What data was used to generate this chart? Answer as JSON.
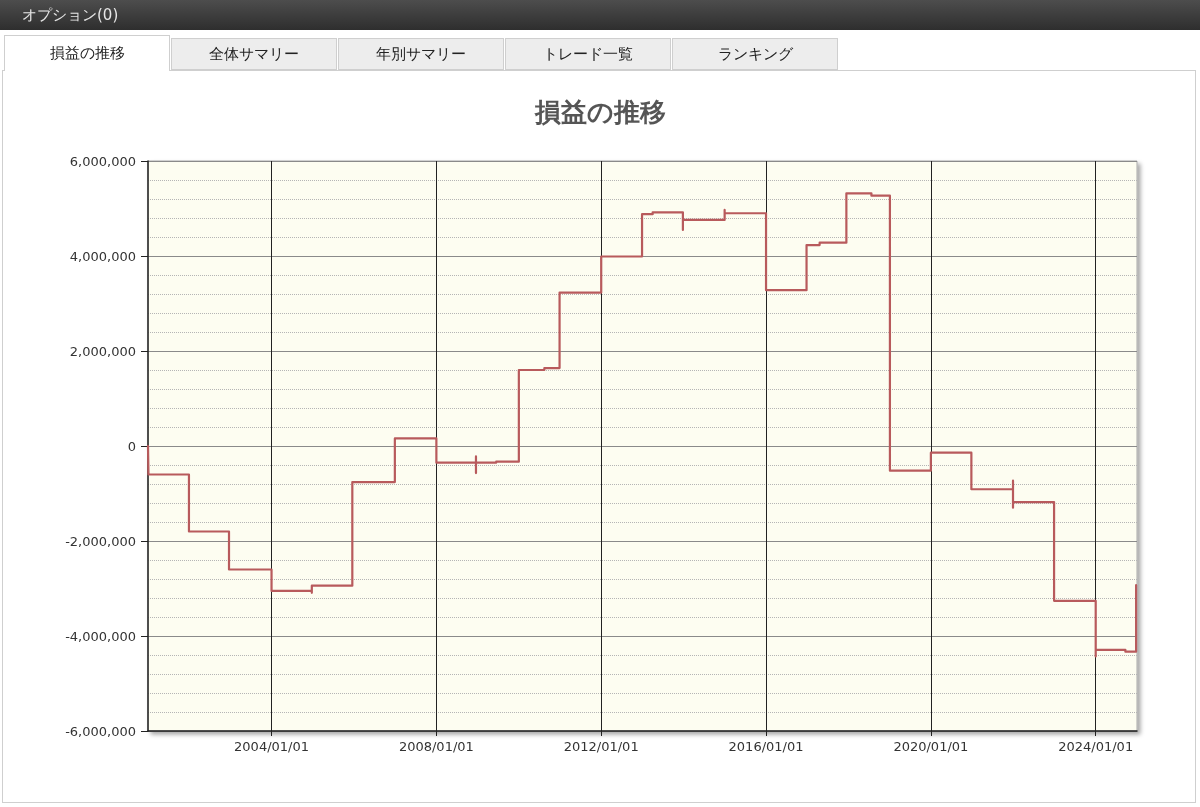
{
  "chart_data": {
    "type": "step",
    "title": "損益の推移",
    "annotations": [
      "オプション(0)",
      "損益の推移",
      "全体サマリー",
      "年別サマリー",
      "トレード一覧",
      "ランキング"
    ],
    "x": [
      "2001-01-01",
      "2001-01-05",
      "2001-12-30",
      "2002-12-20",
      "2004-01-01",
      "2004-12-23",
      "2004-12-23",
      "2005-12-17",
      "2006-12-29",
      "2008-01-01",
      "2008-12-17",
      "2008-12-17",
      "2008-12-17",
      "2009-06-14",
      "2010-01-01",
      "2010-08-15",
      "2010-12-28",
      "2012-01-01",
      "2012-12-28",
      "2013-04-01",
      "2013-12-25",
      "2013-12-25",
      "2014-12-30",
      "2014-12-30",
      "2016-01-01",
      "2016-12-25",
      "2017-04-20",
      "2017-12-13",
      "2018-07-23",
      "2019-01-03",
      "2020-01-01",
      "2020-12-25",
      "2021-12-29",
      "2021-12-29",
      "2021-12-29",
      "2022-12-28",
      "2024-01-01",
      "2024-01-01",
      "2024-09-20",
      "2024-12-24"
    ],
    "values": [
      0,
      -600000,
      -1800000,
      -2600000,
      -3050000,
      -3090000,
      -2940000,
      -760000,
      160000,
      -350000,
      -220000,
      -570000,
      -350000,
      -330000,
      1600000,
      1640000,
      3230000,
      3990000,
      4880000,
      4920000,
      4550000,
      4760000,
      4970000,
      4900000,
      3280000,
      4230000,
      4280000,
      5320000,
      5270000,
      -520000,
      -140000,
      -910000,
      -730000,
      -1300000,
      -1180000,
      -3260000,
      -4430000,
      -4290000,
      -4330000,
      -2930000
    ],
    "color": "#b85a5c",
    "xlim": [
      "2001-01-01",
      "2025-01-01"
    ],
    "xticks": [
      {
        "value": "2004-01-01",
        "label": "2004/01/01"
      },
      {
        "value": "2008-01-01",
        "label": "2008/01/01"
      },
      {
        "value": "2012-01-01",
        "label": "2012/01/01"
      },
      {
        "value": "2016-01-01",
        "label": "2016/01/01"
      },
      {
        "value": "2020-01-01",
        "label": "2020/01/01"
      },
      {
        "value": "2024-01-01",
        "label": "2024/01/01"
      }
    ],
    "ylim": [
      -6000000,
      6000000
    ],
    "yticks": [
      {
        "value": -6000000,
        "label": "-6,000,000"
      },
      {
        "value": -4000000,
        "label": "-4,000,000"
      },
      {
        "value": -2000000,
        "label": "-2,000,000"
      },
      {
        "value": 0,
        "label": "0"
      },
      {
        "value": 2000000,
        "label": "2,000,000"
      },
      {
        "value": 4000000,
        "label": "4,000,000"
      },
      {
        "value": 6000000,
        "label": "6,000,000"
      }
    ],
    "grid": true
  }
}
